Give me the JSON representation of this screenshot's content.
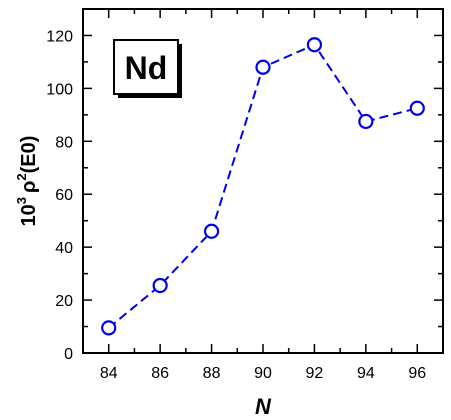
{
  "chart_data": {
    "type": "line",
    "x": [
      84,
      86,
      88,
      90,
      92,
      94,
      96
    ],
    "series": [
      {
        "values": [
          9.5,
          25.5,
          46,
          108,
          116.5,
          87.5,
          92.5
        ]
      }
    ],
    "title": "",
    "xlabel": "N",
    "ylabel_base": "10",
    "ylabel_exp": "3",
    "ylabel_rho": "ρ",
    "ylabel_exp2": "2",
    "ylabel_rest": "(E0)",
    "xlim": [
      83,
      97
    ],
    "ylim": [
      0,
      130
    ],
    "x_ticks": [
      84,
      86,
      88,
      90,
      92,
      94,
      96
    ],
    "y_ticks": [
      0,
      20,
      40,
      60,
      80,
      100,
      120
    ],
    "annotation": "Nd",
    "color": "#0000ee",
    "grid": false
  }
}
